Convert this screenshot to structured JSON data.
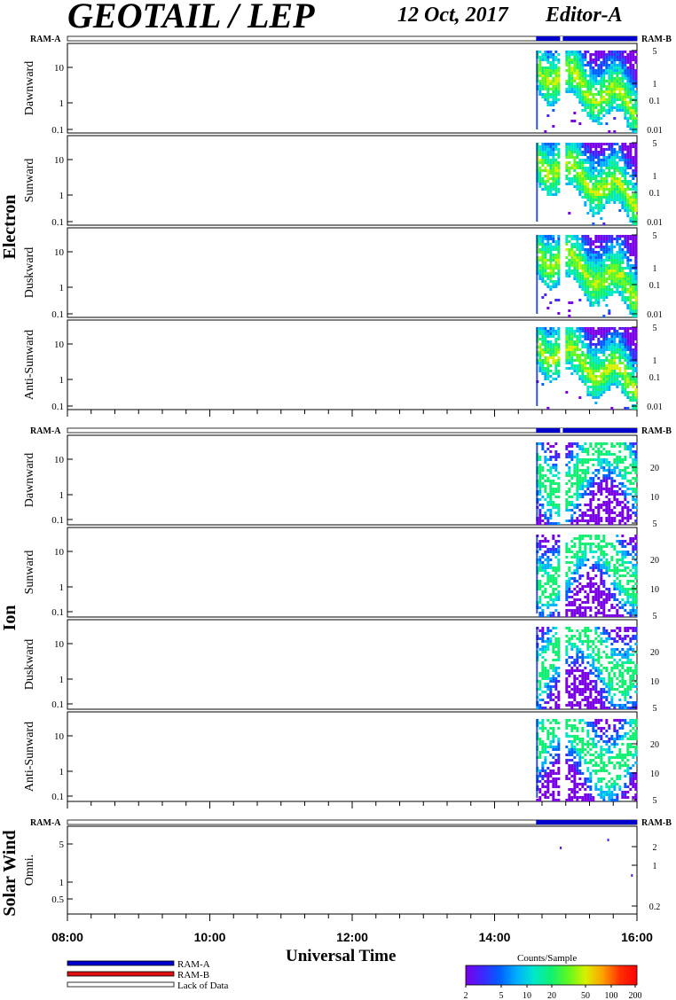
{
  "header": {
    "title": "GEOTAIL / LEP",
    "date": "12 Oct, 2017",
    "editor": "Editor-A"
  },
  "axes": {
    "x_label": "Universal Time",
    "x_ticks": [
      "08:00",
      "10:00",
      "12:00",
      "14:00",
      "16:00"
    ]
  },
  "legend": {
    "items": [
      {
        "label": "RAM-A",
        "color": "#0000cc"
      },
      {
        "label": "RAM-B",
        "color": "#dd1111"
      },
      {
        "label": "Lack of Data",
        "color": "#ffffff"
      }
    ]
  },
  "colorbar": {
    "title": "Counts/Sample",
    "ticks": [
      "2",
      "5",
      "10",
      "20",
      "50",
      "100",
      "200"
    ]
  },
  "ram_labels": {
    "left": "RAM-A",
    "right": "RAM-B"
  },
  "chart_data": [
    {
      "type": "heatmap",
      "group": "Electron",
      "panels": [
        {
          "ylabel": "Dawnward",
          "left_ticks": [
            "10",
            "1",
            "0.1"
          ],
          "right_ticks": [
            "5",
            "1",
            "0.1",
            "0.01"
          ]
        },
        {
          "ylabel": "Sunward",
          "left_ticks": [
            "10",
            "1",
            "0.1"
          ],
          "right_ticks": [
            "5",
            "1",
            "0.1",
            "0.01"
          ]
        },
        {
          "ylabel": "Duskward",
          "left_ticks": [
            "10",
            "1",
            "0.1"
          ],
          "right_ticks": [
            "5",
            "1",
            "0.1",
            "0.01"
          ]
        },
        {
          "ylabel": "Anti-Sunward",
          "left_ticks": [
            "10",
            "1",
            "0.1"
          ],
          "right_ticks": [
            "5",
            "1",
            "0.1",
            "0.01"
          ]
        }
      ],
      "data_start": "14:35",
      "data_gaps": [
        "14:56"
      ],
      "xlim": [
        "08:00",
        "16:00"
      ]
    },
    {
      "type": "heatmap",
      "group": "Ion",
      "panels": [
        {
          "ylabel": "Dawnward",
          "left_ticks": [
            "10",
            "1",
            "0.1"
          ],
          "right_ticks": [
            "20",
            "10",
            "5"
          ]
        },
        {
          "ylabel": "Sunward",
          "left_ticks": [
            "10",
            "1",
            "0.1"
          ],
          "right_ticks": [
            "20",
            "10",
            "5"
          ]
        },
        {
          "ylabel": "Duskward",
          "left_ticks": [
            "10",
            "1",
            "0.1"
          ],
          "right_ticks": [
            "20",
            "10",
            "5"
          ]
        },
        {
          "ylabel": "Anti-Sunward",
          "left_ticks": [
            "10",
            "1",
            "0.1"
          ],
          "right_ticks": [
            "20",
            "10",
            "5"
          ]
        }
      ],
      "data_start": "14:35",
      "data_gaps": [
        "14:56"
      ],
      "xlim": [
        "08:00",
        "16:00"
      ]
    },
    {
      "type": "heatmap",
      "group": "Solar Wind",
      "panels": [
        {
          "ylabel": "Omni.",
          "left_ticks": [
            "5",
            "1",
            "0.5"
          ],
          "right_ticks": [
            "2",
            "1",
            "0.2"
          ]
        }
      ],
      "data_start": "14:35",
      "xlim": [
        "08:00",
        "16:00"
      ]
    }
  ]
}
